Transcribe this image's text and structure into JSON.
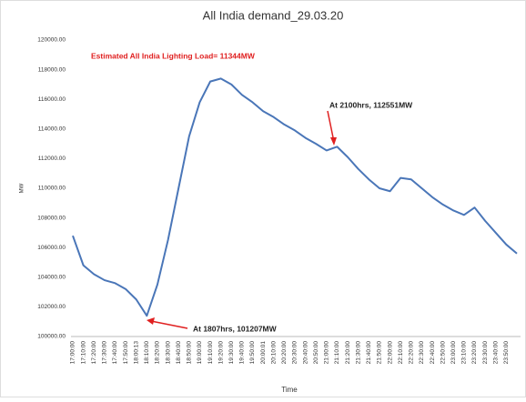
{
  "chart_data": {
    "type": "line",
    "title": "All India demand_29.03.20",
    "x_label": "Time",
    "y_label": "MW",
    "annotations": [
      "Estimated All India Lighting Load= 11344MW",
      "At 2100hrs, 112551MW",
      "At 1807hrs, 101207MW"
    ],
    "categories": [
      "17:00:00",
      "17:10:00",
      "17:20:00",
      "17:30:00",
      "17:40:00",
      "17:50:00",
      "18:00:13",
      "18:10:00",
      "18:20:00",
      "18:30:00",
      "18:40:00",
      "18:50:00",
      "19:00:00",
      "19:10:00",
      "19:20:00",
      "19:30:00",
      "19:40:00",
      "19:50:00",
      "20:00:01",
      "20:10:00",
      "20:20:00",
      "20:30:00",
      "20:40:00",
      "20:50:00",
      "21:00:00",
      "21:10:00",
      "21:20:00",
      "21:30:00",
      "21:40:00",
      "21:50:00",
      "22:00:00",
      "22:10:00",
      "22:20:00",
      "22:30:00",
      "22:40:00",
      "22:50:00",
      "23:00:00",
      "23:10:00",
      "23:20:00",
      "23:30:00",
      "23:40:00",
      "23:50:00",
      null
    ],
    "series": [
      {
        "name": "MW",
        "color": "#4a76b8",
        "values": [
          106800,
          104800,
          104200,
          103800,
          103600,
          103200,
          102500,
          101400,
          103500,
          106500,
          110000,
          113500,
          115800,
          117200,
          117400,
          117000,
          116300,
          115800,
          115200,
          114800,
          114300,
          113900,
          113400,
          113000,
          112551,
          112800,
          112100,
          111300,
          110600,
          110000,
          109800,
          110700,
          110600,
          110000,
          109400,
          108900,
          108500,
          108200,
          108700,
          107800,
          107000,
          106200,
          105600
        ]
      }
    ],
    "ylim": [
      100000,
      120000
    ],
    "yticks": [
      {
        "value": 100000,
        "label": "100000.00"
      },
      {
        "value": 102000,
        "label": "102000.00"
      },
      {
        "value": 104000,
        "label": "104000.00"
      },
      {
        "value": 106000,
        "label": "106000.00"
      },
      {
        "value": 108000,
        "label": "108000.00"
      },
      {
        "value": 110000,
        "label": "110000.00"
      },
      {
        "value": 112000,
        "label": "112000.00"
      },
      {
        "value": 114000,
        "label": "114000.00"
      },
      {
        "value": 116000,
        "label": "116000.00"
      },
      {
        "value": 118000,
        "label": "118000.00"
      },
      {
        "value": 120000,
        "label": "120000.00"
      }
    ],
    "grid": false
  }
}
